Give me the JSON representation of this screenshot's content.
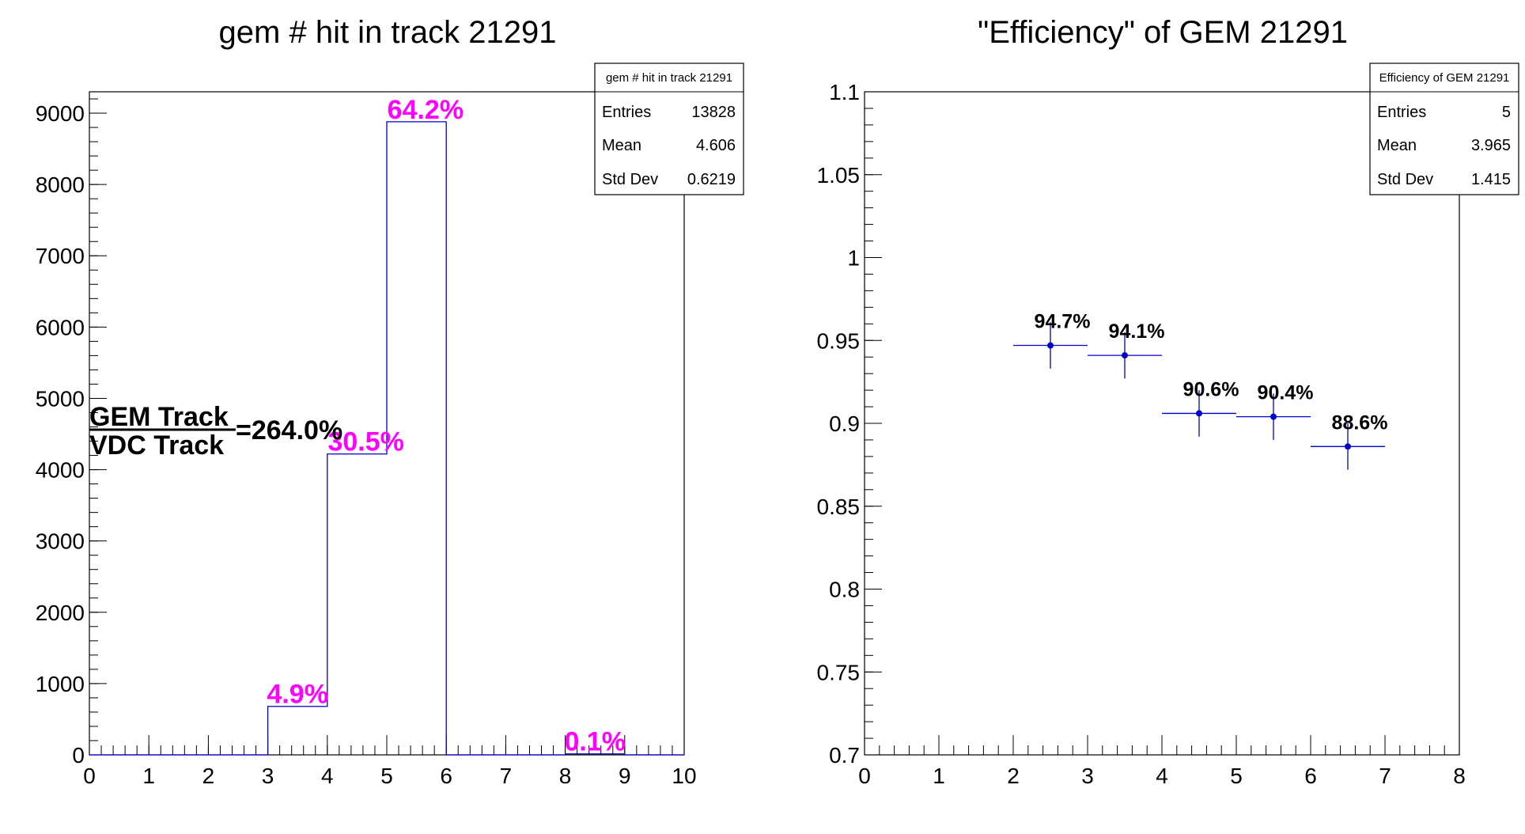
{
  "colors": {
    "line": "#0000cc",
    "pct": "#ff00ff",
    "axis": "#000000"
  },
  "chart_data": [
    {
      "type": "bar",
      "title": "gem # hit in track 21291",
      "x_ticks": [
        "0",
        "1",
        "2",
        "3",
        "4",
        "5",
        "6",
        "7",
        "8",
        "9",
        "10"
      ],
      "y_ticks": [
        "0",
        "1000",
        "2000",
        "3000",
        "4000",
        "5000",
        "6000",
        "7000",
        "8000",
        "9000"
      ],
      "xlim": [
        0,
        10
      ],
      "ylim": [
        0,
        9300
      ],
      "bins": [
        {
          "x0": 0,
          "x1": 1,
          "value": 0
        },
        {
          "x0": 1,
          "x1": 2,
          "value": 0
        },
        {
          "x0": 2,
          "x1": 3,
          "value": 0
        },
        {
          "x0": 3,
          "x1": 4,
          "value": 680
        },
        {
          "x0": 4,
          "x1": 5,
          "value": 4220
        },
        {
          "x0": 5,
          "x1": 6,
          "value": 8880
        },
        {
          "x0": 6,
          "x1": 7,
          "value": 0
        },
        {
          "x0": 7,
          "x1": 8,
          "value": 0
        },
        {
          "x0": 8,
          "x1": 9,
          "value": 14
        },
        {
          "x0": 9,
          "x1": 10,
          "value": 0
        }
      ],
      "bin_labels": [
        {
          "text": "4.9%",
          "x": 3.5,
          "y": 680
        },
        {
          "text": "30.5%",
          "x": 4.65,
          "y": 4220
        },
        {
          "text": "64.2%",
          "x": 5.65,
          "y": 8880
        },
        {
          "text": "0.1%",
          "x": 8.5,
          "y": 14
        }
      ],
      "ratio": {
        "numerator": "GEM Track",
        "denominator": "VDC Track",
        "value": "=264.0%"
      },
      "stats": {
        "title": "gem # hit in track 21291",
        "rows": [
          {
            "label": "Entries",
            "value": "13828"
          },
          {
            "label": "Mean",
            "value": "4.606"
          },
          {
            "label": "Std Dev",
            "value": "0.6219"
          }
        ]
      }
    },
    {
      "type": "scatter",
      "title": "\"Efficiency\" of GEM 21291",
      "x_ticks": [
        "0",
        "1",
        "2",
        "3",
        "4",
        "5",
        "6",
        "7",
        "8"
      ],
      "y_ticks": [
        "0.7",
        "0.75",
        "0.8",
        "0.85",
        "0.9",
        "0.95",
        "1",
        "1.05",
        "1.1"
      ],
      "xlim": [
        0,
        8
      ],
      "ylim": [
        0.7,
        1.1
      ],
      "points": [
        {
          "x": 2.5,
          "y": 0.947,
          "xerr": 0.5,
          "yerr": 0.014,
          "label": "94.7%"
        },
        {
          "x": 3.5,
          "y": 0.941,
          "xerr": 0.5,
          "yerr": 0.014,
          "label": "94.1%"
        },
        {
          "x": 4.5,
          "y": 0.906,
          "xerr": 0.5,
          "yerr": 0.014,
          "label": "90.6%"
        },
        {
          "x": 5.5,
          "y": 0.904,
          "xerr": 0.5,
          "yerr": 0.014,
          "label": "90.4%"
        },
        {
          "x": 6.5,
          "y": 0.886,
          "xerr": 0.5,
          "yerr": 0.014,
          "label": "88.6%"
        }
      ],
      "stats": {
        "title": "Efficiency of GEM 21291",
        "rows": [
          {
            "label": "Entries",
            "value": "5"
          },
          {
            "label": "Mean",
            "value": "3.965"
          },
          {
            "label": "Std Dev",
            "value": "1.415"
          }
        ]
      }
    }
  ]
}
